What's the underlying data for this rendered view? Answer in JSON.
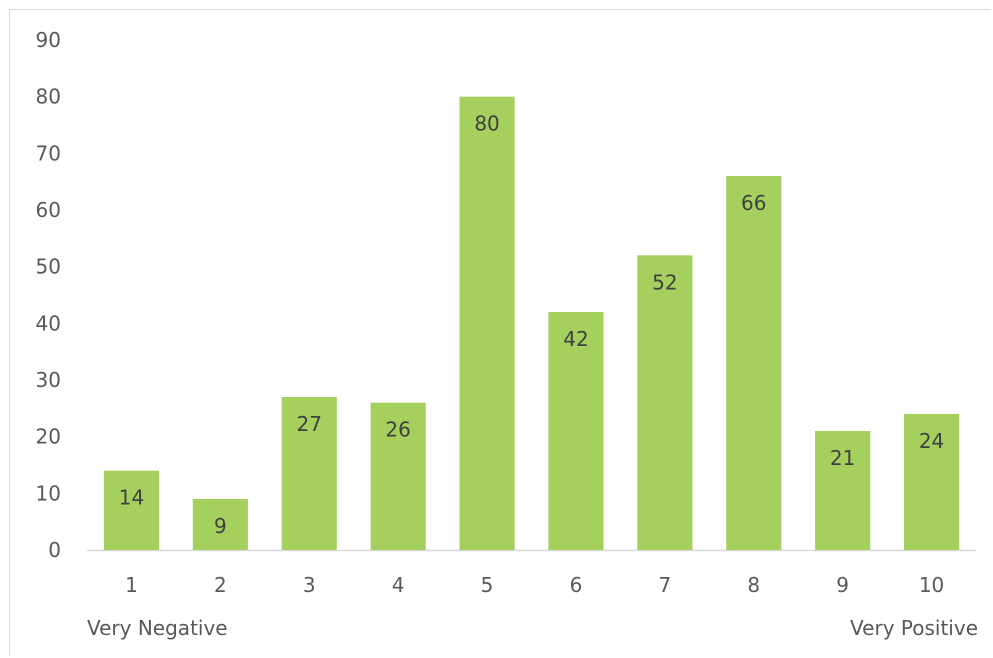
{
  "chart_data": {
    "type": "bar",
    "categories": [
      "1",
      "2",
      "3",
      "4",
      "5",
      "6",
      "7",
      "8",
      "9",
      "10"
    ],
    "values": [
      14,
      9,
      27,
      26,
      80,
      42,
      52,
      66,
      21,
      24
    ],
    "ylim": [
      0,
      90
    ],
    "yticks": [
      "0",
      "10",
      "20",
      "30",
      "40",
      "50",
      "60",
      "70",
      "80",
      "90"
    ],
    "grid": false,
    "legend": "none",
    "bar_color": "#a5d05e",
    "scale_low_label": "Very Negative",
    "scale_high_label": "Very Positive",
    "data_labels": true
  }
}
